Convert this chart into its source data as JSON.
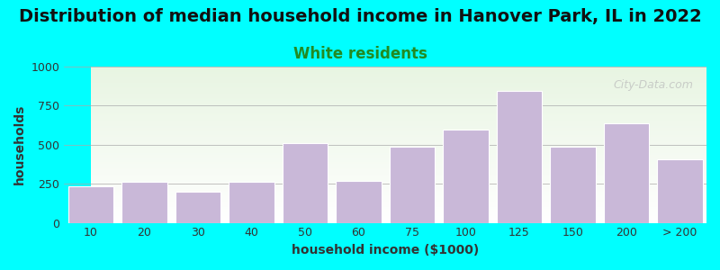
{
  "title": "Distribution of median household income in Hanover Park, IL in 2022",
  "subtitle": "White residents",
  "xlabel": "household income ($1000)",
  "ylabel": "households",
  "background_color": "#00FFFF",
  "plot_bg_gradient_top": "#e8f5e2",
  "plot_bg_gradient_bottom": "#ffffff",
  "bar_color": "#c9b8d8",
  "bar_edge_color": "#ffffff",
  "categories": [
    "10",
    "20",
    "30",
    "40",
    "50",
    "60",
    "75",
    "100",
    "125",
    "150",
    "200",
    "> 200"
  ],
  "values": [
    235,
    265,
    200,
    260,
    510,
    270,
    490,
    595,
    845,
    485,
    635,
    405
  ],
  "ylim": [
    0,
    1000
  ],
  "yticks": [
    0,
    250,
    500,
    750,
    1000
  ],
  "title_fontsize": 14,
  "subtitle_fontsize": 12,
  "subtitle_color": "#228B22",
  "axis_label_fontsize": 10,
  "tick_fontsize": 9,
  "watermark": "City-Data.com"
}
